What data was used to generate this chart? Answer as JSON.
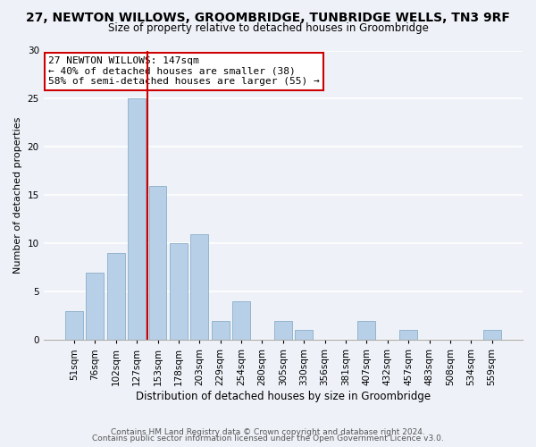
{
  "title_line1": "27, NEWTON WILLOWS, GROOMBRIDGE, TUNBRIDGE WELLS, TN3 9RF",
  "title_line2": "Size of property relative to detached houses in Groombridge",
  "xlabel": "Distribution of detached houses by size in Groombridge",
  "ylabel": "Number of detached properties",
  "bar_labels": [
    "51sqm",
    "76sqm",
    "102sqm",
    "127sqm",
    "153sqm",
    "178sqm",
    "203sqm",
    "229sqm",
    "254sqm",
    "280sqm",
    "305sqm",
    "330sqm",
    "356sqm",
    "381sqm",
    "407sqm",
    "432sqm",
    "457sqm",
    "483sqm",
    "508sqm",
    "534sqm",
    "559sqm"
  ],
  "bar_values": [
    3,
    7,
    9,
    25,
    16,
    10,
    11,
    2,
    4,
    0,
    2,
    1,
    0,
    0,
    2,
    0,
    1,
    0,
    0,
    0,
    1
  ],
  "bar_color": "#b8cfe8",
  "bar_edge_color": "#8aaec8",
  "vline_color": "#cc0000",
  "annotation_title": "27 NEWTON WILLOWS: 147sqm",
  "annotation_line2": "← 40% of detached houses are smaller (38)",
  "annotation_line3": "58% of semi-detached houses are larger (55) →",
  "annotation_box_facecolor": "#ffffff",
  "annotation_box_edgecolor": "#cc0000",
  "ylim": [
    0,
    30
  ],
  "yticks": [
    0,
    5,
    10,
    15,
    20,
    25,
    30
  ],
  "footer_line1": "Contains HM Land Registry data © Crown copyright and database right 2024.",
  "footer_line2": "Contains public sector information licensed under the Open Government Licence v3.0.",
  "background_color": "#eef2f8",
  "grid_color": "#ffffff",
  "title_fontsize": 10,
  "subtitle_fontsize": 8.5,
  "ylabel_fontsize": 8,
  "xlabel_fontsize": 8.5,
  "tick_fontsize": 7.5,
  "footer_fontsize": 6.5,
  "ann_fontsize": 8
}
